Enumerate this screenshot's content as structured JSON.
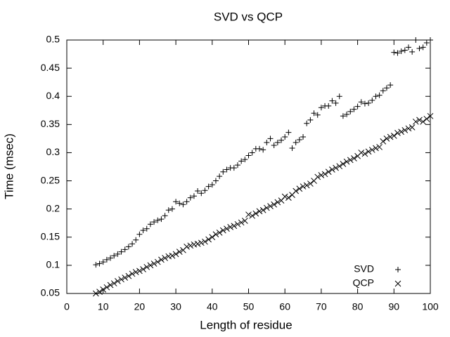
{
  "chart_data": {
    "type": "scatter",
    "title": "SVD vs QCP",
    "x_label": "Length of residue",
    "y_label": "Time (msec)",
    "x": [
      8,
      9,
      10,
      11,
      12,
      13,
      14,
      15,
      16,
      17,
      18,
      19,
      20,
      21,
      22,
      23,
      24,
      25,
      26,
      27,
      28,
      29,
      30,
      31,
      32,
      33,
      34,
      35,
      36,
      37,
      38,
      39,
      40,
      41,
      42,
      43,
      44,
      45,
      46,
      47,
      48,
      49,
      50,
      51,
      52,
      53,
      54,
      55,
      56,
      57,
      58,
      59,
      60,
      61,
      62,
      63,
      64,
      65,
      66,
      67,
      68,
      69,
      70,
      71,
      72,
      73,
      74,
      75,
      76,
      77,
      78,
      79,
      80,
      81,
      82,
      83,
      84,
      85,
      86,
      87,
      88,
      89,
      90,
      91,
      92,
      93,
      94,
      95,
      96,
      97,
      98,
      99,
      100
    ],
    "series": [
      {
        "name": "SVD",
        "marker": "plus",
        "color": "#000000",
        "values": [
          0.101,
          0.103,
          0.106,
          0.11,
          0.113,
          0.117,
          0.12,
          0.124,
          0.128,
          0.133,
          0.138,
          0.145,
          0.155,
          0.162,
          0.165,
          0.173,
          0.177,
          0.18,
          0.182,
          0.188,
          0.198,
          0.2,
          0.213,
          0.21,
          0.208,
          0.213,
          0.22,
          0.223,
          0.232,
          0.228,
          0.233,
          0.24,
          0.243,
          0.25,
          0.258,
          0.266,
          0.27,
          0.273,
          0.273,
          0.278,
          0.285,
          0.288,
          0.295,
          0.3,
          0.307,
          0.307,
          0.305,
          0.318,
          0.325,
          0.313,
          0.318,
          0.322,
          0.328,
          0.336,
          0.308,
          0.318,
          0.323,
          0.328,
          0.352,
          0.358,
          0.37,
          0.367,
          0.38,
          0.383,
          0.383,
          0.392,
          0.388,
          0.4,
          0.365,
          0.368,
          0.373,
          0.377,
          0.382,
          0.39,
          0.387,
          0.388,
          0.393,
          0.4,
          0.402,
          0.41,
          0.415,
          0.42,
          0.478,
          0.477,
          0.48,
          0.482,
          0.487,
          0.479,
          0.5,
          0.485,
          0.487,
          0.495,
          0.5
        ]
      },
      {
        "name": "QCP",
        "marker": "cross",
        "color": "#000000",
        "values": [
          0.05,
          0.053,
          0.057,
          0.061,
          0.065,
          0.068,
          0.072,
          0.075,
          0.078,
          0.081,
          0.085,
          0.088,
          0.09,
          0.093,
          0.097,
          0.1,
          0.103,
          0.106,
          0.11,
          0.113,
          0.116,
          0.117,
          0.12,
          0.124,
          0.127,
          0.133,
          0.135,
          0.137,
          0.138,
          0.14,
          0.142,
          0.146,
          0.15,
          0.155,
          0.158,
          0.162,
          0.165,
          0.168,
          0.17,
          0.173,
          0.176,
          0.179,
          0.19,
          0.188,
          0.192,
          0.196,
          0.198,
          0.202,
          0.205,
          0.208,
          0.212,
          0.215,
          0.222,
          0.22,
          0.225,
          0.232,
          0.236,
          0.24,
          0.242,
          0.245,
          0.25,
          0.257,
          0.26,
          0.262,
          0.266,
          0.27,
          0.273,
          0.276,
          0.28,
          0.284,
          0.287,
          0.29,
          0.294,
          0.3,
          0.298,
          0.302,
          0.305,
          0.308,
          0.31,
          0.32,
          0.325,
          0.328,
          0.33,
          0.335,
          0.337,
          0.34,
          0.343,
          0.345,
          0.355,
          0.358,
          0.355,
          0.36,
          0.365
        ]
      }
    ],
    "xlim": [
      0,
      100
    ],
    "xticks": [
      0,
      10,
      20,
      30,
      40,
      50,
      60,
      70,
      80,
      90,
      100
    ],
    "ylim": [
      0.05,
      0.5
    ],
    "yticks": [
      0.05,
      0.1,
      0.15,
      0.2,
      0.25,
      0.3,
      0.35,
      0.4,
      0.45,
      0.5
    ],
    "grid": false,
    "legend": "bottom-right"
  }
}
